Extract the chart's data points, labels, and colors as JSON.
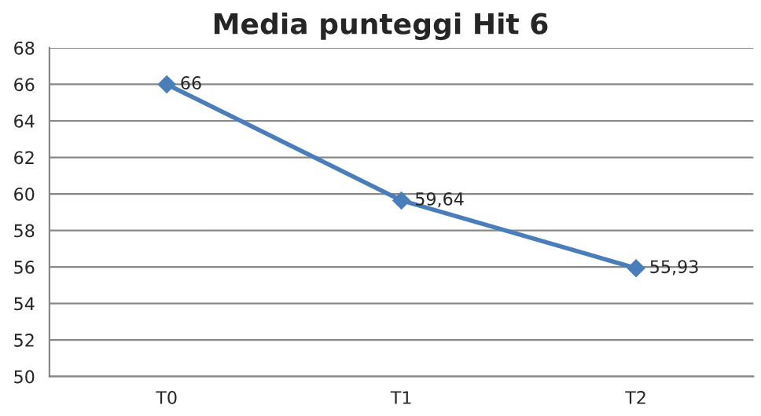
{
  "chart_data": {
    "type": "line",
    "title": "Media punteggi Hit 6",
    "categories": [
      "T0",
      "T1",
      "T2"
    ],
    "series": [
      {
        "color": "#4a7ebb",
        "values": [
          66,
          59.64,
          55.93
        ],
        "value_labels": [
          "66",
          "59,64",
          "55,93"
        ]
      }
    ],
    "ylim": [
      50,
      68
    ],
    "yticks": [
      50,
      52,
      54,
      56,
      58,
      60,
      62,
      64,
      66,
      68
    ],
    "grid": "y",
    "marker": "diamond",
    "line_style": "solid",
    "legend": false
  }
}
